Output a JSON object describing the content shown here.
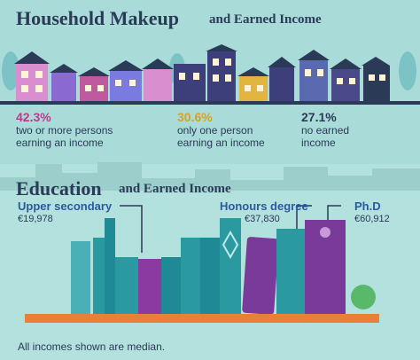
{
  "household": {
    "title": "Household Makeup",
    "subtitle": "and Earned Income",
    "stats": [
      {
        "value": "42.3%",
        "lines": [
          "two or more persons",
          "earning an income"
        ]
      },
      {
        "value": "30.6%",
        "lines": [
          "only one person",
          "earning an income"
        ]
      },
      {
        "value": "27.1%",
        "lines": [
          "no earned",
          "income"
        ]
      }
    ]
  },
  "education": {
    "title": "Education",
    "subtitle": "and Earned Income",
    "levels": [
      {
        "label": "Upper secondary",
        "income": "€19,978"
      },
      {
        "label": "Honours degree",
        "income": "€37,830"
      },
      {
        "label": "Ph.D",
        "income": "€60,912"
      }
    ]
  },
  "footnote": "All incomes shown are median."
}
